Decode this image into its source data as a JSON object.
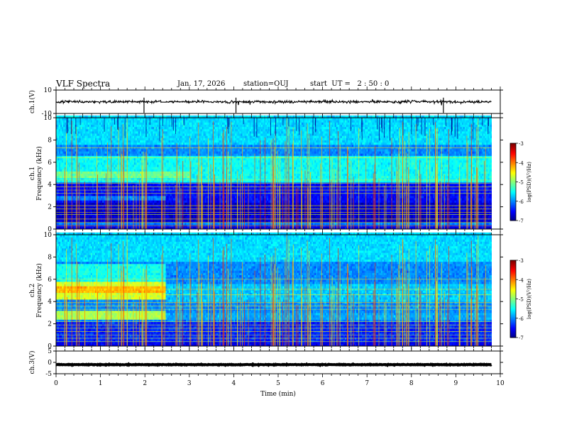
{
  "header": {
    "title": "VLF Spectra",
    "date": "Jan. 17, 2026",
    "station": "station=OUJ",
    "start": "start  UT =   2 : 50 : 0"
  },
  "chart_data": [
    {
      "type": "line",
      "name": "ch1-waveform",
      "ylabel": "ch.1(V)",
      "ylim": [
        -10,
        10
      ],
      "yticks": [
        "10",
        "-10"
      ],
      "baseline": 0,
      "duration_min": 9.8
    },
    {
      "type": "heatmap",
      "name": "ch1-spectrogram",
      "ylabel": "ch.1\nFrequency  (kHz)",
      "ylim": [
        0,
        10
      ],
      "yticks": [
        "0",
        "2",
        "4",
        "6",
        "8",
        "10"
      ],
      "colorbar": {
        "label": "log(PSD)(V²/Hz)",
        "range": [
          -7,
          -3
        ],
        "ticks": [
          "-3",
          "-4",
          "-5",
          "-6",
          "-7"
        ]
      }
    },
    {
      "type": "heatmap",
      "name": "ch2-spectrogram",
      "ylabel": "ch.2\nFrequency  (kHz)",
      "ylim": [
        0,
        10
      ],
      "yticks": [
        "0",
        "2",
        "4",
        "6",
        "8",
        "10"
      ],
      "colorbar": {
        "label": "log(PSD)(V²/Hz)",
        "range": [
          -7,
          -3
        ],
        "ticks": [
          "-3",
          "-4",
          "-5",
          "-6",
          "-7"
        ]
      }
    },
    {
      "type": "line",
      "name": "ch3-waveform",
      "ylabel": "ch.3(V)",
      "ylim": [
        -5,
        5
      ],
      "yticks": [
        "5",
        "0",
        "-5"
      ],
      "baseline": -1,
      "duration_min": 9.8
    }
  ],
  "x_axis": {
    "label": "Time  (min)",
    "range": [
      0,
      10
    ],
    "ticks": [
      "0",
      "1",
      "2",
      "3",
      "4",
      "5",
      "6",
      "7",
      "8",
      "9",
      "10"
    ]
  },
  "colors": {
    "frame": "#000000",
    "colormap": [
      "#00008f",
      "#0000ff",
      "#0080ff",
      "#00ffff",
      "#80ff80",
      "#ffff00",
      "#ff8000",
      "#ff0000",
      "#800000"
    ]
  }
}
